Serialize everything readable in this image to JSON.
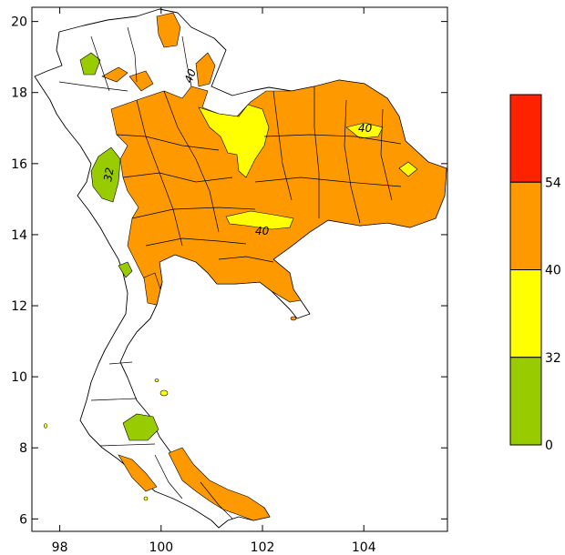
{
  "map": {
    "x_ticks": [
      98,
      100,
      102,
      104
    ],
    "y_ticks": [
      6,
      8,
      10,
      12,
      14,
      16,
      18,
      20
    ],
    "x_range": [
      97.45,
      105.65
    ],
    "y_range": [
      5.65,
      20.4
    ],
    "contour_labels": [
      "40",
      "40",
      "40",
      "32"
    ]
  },
  "legend": {
    "levels": [
      {
        "label": "0",
        "color": "#99CC00"
      },
      {
        "label": "32",
        "color": "#FFFF00"
      },
      {
        "label": "40",
        "color": "#FF9900"
      },
      {
        "label": "54",
        "color": "#FF2200"
      }
    ],
    "top_color": "#FF2200"
  },
  "colors": {
    "green": "#99CC00",
    "yellow": "#FFFF00",
    "orange": "#FF9900",
    "red": "#FF2200"
  }
}
